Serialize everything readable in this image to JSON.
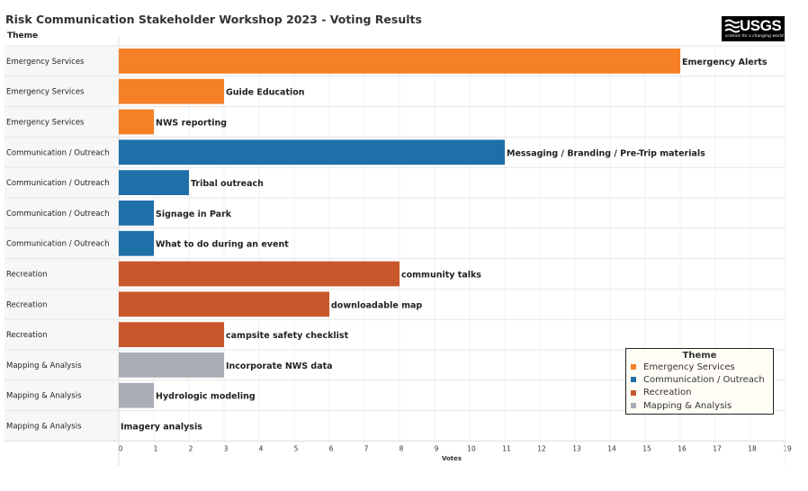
{
  "title": "Risk Communication Stakeholder Workshop 2023 - Voting Results",
  "logo": {
    "text": "USGS",
    "tagline": "science for a changing world"
  },
  "chart_data": {
    "type": "bar",
    "orientation": "horizontal",
    "title": "Risk Communication Stakeholder Workshop 2023 - Voting Results",
    "row_header": "Theme",
    "xlabel": "Votes",
    "xlim": [
      0,
      19
    ],
    "xticks": [
      0,
      1,
      2,
      3,
      4,
      5,
      6,
      7,
      8,
      9,
      10,
      11,
      12,
      13,
      14,
      15,
      16,
      17,
      18,
      19
    ],
    "grid": true,
    "legend_placement": "bottom-right",
    "legend_title": "Theme",
    "legend": [
      {
        "name": "Emergency Services",
        "color": "#f58025"
      },
      {
        "name": "Communication / Outreach",
        "color": "#1f6fa8"
      },
      {
        "name": "Recreation",
        "color": "#c8582b"
      },
      {
        "name": "Mapping & Analysis",
        "color": "#a8adb6"
      }
    ],
    "rows": [
      {
        "theme": "Emergency Services",
        "label": "Emergency Alerts",
        "value": 16
      },
      {
        "theme": "Emergency Services",
        "label": "Guide Education",
        "value": 3
      },
      {
        "theme": "Emergency Services",
        "label": "NWS reporting",
        "value": 1
      },
      {
        "theme": "Communication / Outreach",
        "label": "Messaging / Branding / Pre-Trip materials",
        "value": 11
      },
      {
        "theme": "Communication / Outreach",
        "label": "Tribal outreach",
        "value": 2
      },
      {
        "theme": "Communication / Outreach",
        "label": "Signage in Park",
        "value": 1
      },
      {
        "theme": "Communication / Outreach",
        "label": "What to do during an event",
        "value": 1
      },
      {
        "theme": "Recreation",
        "label": "community talks",
        "value": 8
      },
      {
        "theme": "Recreation",
        "label": "downloadable map",
        "value": 6
      },
      {
        "theme": "Recreation",
        "label": "campsite safety checklist",
        "value": 3
      },
      {
        "theme": "Mapping & Analysis",
        "label": "Incorporate NWS data",
        "value": 3
      },
      {
        "theme": "Mapping & Analysis",
        "label": "Hydrologic modeling",
        "value": 1
      },
      {
        "theme": "Mapping & Analysis",
        "label": "Imagery analysis",
        "value": 0
      }
    ]
  }
}
